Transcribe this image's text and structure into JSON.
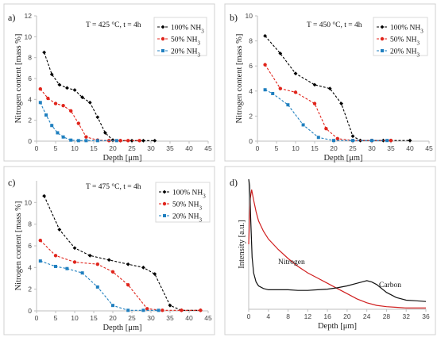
{
  "colors": {
    "s100": "#000000",
    "s50": "#e0241b",
    "s20": "#1f7fbf",
    "nitrogen_curve": "#d01f1f",
    "carbon_curve": "#111111"
  },
  "chart_data": [
    {
      "type": "line",
      "panel_label": "a)",
      "condition": "T = 425 °C, t = 4h",
      "xlabel": "Depth [μm]",
      "ylabel": "Nitrogen content [mass %]",
      "xlim": [
        0,
        45
      ],
      "ylim": [
        0,
        12
      ],
      "xticks": [
        0,
        5,
        10,
        15,
        20,
        25,
        30,
        35,
        40,
        45
      ],
      "yticks": [
        0,
        2,
        4,
        6,
        8,
        10,
        12
      ],
      "legend_position": "top-right, framed",
      "legend_labels": [
        "100% NH",
        "50% NH",
        "20% NH"
      ],
      "legend_subscript": "3",
      "series": [
        {
          "name": "100% NH3",
          "color_key": "s100",
          "marker": "diamond",
          "x": [
            2,
            4,
            6,
            8,
            10,
            12,
            14,
            16,
            18,
            20,
            22,
            25,
            28,
            31
          ],
          "y": [
            8.5,
            6.4,
            5.4,
            5.1,
            4.9,
            4.2,
            3.7,
            2.3,
            0.8,
            0.1,
            0.05,
            0.05,
            0.05,
            0.05
          ]
        },
        {
          "name": "50% NH3",
          "color_key": "s50",
          "marker": "circle",
          "x": [
            1,
            3,
            5,
            7,
            9,
            11,
            13,
            16,
            19,
            22,
            24,
            27
          ],
          "y": [
            5.0,
            4.1,
            3.6,
            3.4,
            2.9,
            1.7,
            0.4,
            0.1,
            0.05,
            0.05,
            0.05,
            0.05
          ]
        },
        {
          "name": "20% NH3",
          "color_key": "s20",
          "marker": "square",
          "x": [
            1,
            2.5,
            4,
            5.5,
            7,
            9,
            11,
            13,
            16,
            21
          ],
          "y": [
            3.7,
            2.5,
            1.5,
            0.8,
            0.4,
            0.1,
            0.05,
            0.05,
            0.05,
            0.05
          ]
        }
      ]
    },
    {
      "type": "line",
      "panel_label": "b)",
      "condition": "T = 450 °C, t = 4h",
      "xlabel": "Depth [μm]",
      "ylabel": "Nitrogen content [mass %]",
      "xlim": [
        0,
        45
      ],
      "ylim": [
        0,
        10
      ],
      "xticks": [
        0,
        5,
        10,
        15,
        20,
        25,
        30,
        35,
        40,
        45
      ],
      "yticks": [
        0,
        2,
        4,
        6,
        8,
        10
      ],
      "legend_position": "top-right, framed",
      "legend_labels": [
        "100% NH",
        "50% NH",
        "20% NH"
      ],
      "legend_subscript": "3",
      "series": [
        {
          "name": "100% NH3",
          "color_key": "s100",
          "marker": "diamond",
          "x": [
            2,
            6,
            10,
            15,
            19,
            22,
            25,
            27,
            30,
            33,
            35,
            40
          ],
          "y": [
            8.4,
            7.0,
            5.4,
            4.5,
            4.2,
            3.0,
            0.4,
            0.05,
            0.05,
            0.05,
            0.05,
            0.05
          ]
        },
        {
          "name": "50% NH3",
          "color_key": "s50",
          "marker": "circle",
          "x": [
            2,
            6,
            10,
            15,
            18,
            21,
            25,
            30,
            35
          ],
          "y": [
            6.1,
            4.2,
            3.9,
            3.0,
            1.0,
            0.2,
            0.05,
            0.05,
            0.05
          ]
        },
        {
          "name": "20% NH3",
          "color_key": "s20",
          "marker": "square",
          "x": [
            2,
            4,
            8,
            12,
            16,
            20,
            25,
            30,
            34
          ],
          "y": [
            4.1,
            3.8,
            2.9,
            1.3,
            0.3,
            0.05,
            0.05,
            0.05,
            0.05
          ]
        }
      ]
    },
    {
      "type": "line",
      "panel_label": "c)",
      "condition": "T = 475 °C, t = 4h",
      "xlabel": "Depth [μm]",
      "ylabel": "Nitrogen content [mass %]",
      "xlim": [
        0,
        45
      ],
      "ylim": [
        0,
        12
      ],
      "xticks": [
        0,
        5,
        10,
        15,
        20,
        25,
        30,
        35,
        40,
        45
      ],
      "yticks": [
        0,
        2,
        4,
        6,
        8,
        10
      ],
      "legend_position": "top-right, framed",
      "legend_labels": [
        "100% NH",
        "50% NH",
        "20% NH"
      ],
      "legend_subscript": "3",
      "series": [
        {
          "name": "100% NH3",
          "color_key": "s100",
          "marker": "diamond",
          "x": [
            2,
            6,
            10,
            14,
            19,
            24,
            28,
            31,
            35,
            38,
            43
          ],
          "y": [
            10.6,
            7.5,
            5.8,
            5.1,
            4.7,
            4.3,
            4.0,
            3.4,
            0.5,
            0.05,
            0.05
          ]
        },
        {
          "name": "50% NH3",
          "color_key": "s50",
          "marker": "circle",
          "x": [
            1,
            5,
            10,
            16,
            20,
            24,
            29,
            33,
            38,
            43
          ],
          "y": [
            6.5,
            5.1,
            4.5,
            4.3,
            3.6,
            2.4,
            0.2,
            0.05,
            0.05,
            0.05
          ]
        },
        {
          "name": "20% NH3",
          "color_key": "s20",
          "marker": "square",
          "x": [
            1,
            5,
            8,
            12,
            16,
            20,
            24,
            28,
            32
          ],
          "y": [
            4.6,
            4.1,
            3.9,
            3.5,
            2.2,
            0.5,
            0.05,
            0.05,
            0.05
          ]
        }
      ]
    },
    {
      "type": "line",
      "panel_label": "d)",
      "xlabel": "Depth [μm]",
      "ylabel": "Intensity [a.u.]",
      "xlim": [
        0,
        36
      ],
      "ylim": [
        0,
        1
      ],
      "y_tick_labels": "none",
      "xticks": [
        0,
        4,
        8,
        12,
        16,
        20,
        24,
        28,
        32,
        36
      ],
      "annotations": [
        "Nitrogen",
        "Carbon"
      ],
      "series": [
        {
          "name": "Nitrogen",
          "color_key": "nitrogen_curve",
          "marker": "none",
          "x": [
            0,
            0.3,
            0.6,
            1,
            1.5,
            2,
            3,
            4,
            6,
            8,
            10,
            12,
            14,
            16,
            18,
            20,
            22,
            24,
            26,
            28,
            30,
            32,
            34,
            36
          ],
          "y": [
            0.5,
            0.85,
            0.92,
            0.84,
            0.75,
            0.68,
            0.6,
            0.54,
            0.46,
            0.39,
            0.33,
            0.28,
            0.24,
            0.2,
            0.16,
            0.12,
            0.08,
            0.05,
            0.03,
            0.02,
            0.015,
            0.01,
            0.01,
            0.01
          ]
        },
        {
          "name": "Carbon",
          "color_key": "carbon_curve",
          "marker": "none",
          "x": [
            0,
            0.2,
            0.4,
            0.7,
            1,
            1.5,
            2,
            3,
            4,
            6,
            8,
            10,
            12,
            14,
            16,
            18,
            20,
            22,
            23,
            24,
            25,
            26,
            28,
            30,
            32,
            34,
            36
          ],
          "y": [
            1.0,
            0.95,
            0.7,
            0.4,
            0.28,
            0.21,
            0.18,
            0.16,
            0.15,
            0.15,
            0.15,
            0.145,
            0.145,
            0.15,
            0.155,
            0.165,
            0.18,
            0.2,
            0.21,
            0.22,
            0.21,
            0.19,
            0.13,
            0.09,
            0.07,
            0.065,
            0.06
          ]
        }
      ]
    }
  ]
}
